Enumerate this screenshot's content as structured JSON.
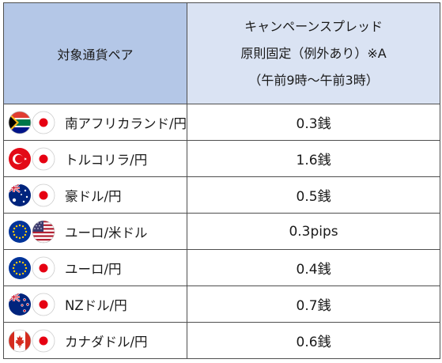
{
  "header": {
    "pair_column": "対象通貨ペア",
    "spread_column_lines": [
      "キャンペーンスプレッド",
      "原則固定（例外あり）※A",
      "（午前9時～午前3時）"
    ]
  },
  "rows": [
    {
      "pair": "南アフリカランド/円",
      "spread": "0.3銭",
      "flag_left": "south-africa-flag-icon",
      "flag_right": "japan-flag-icon"
    },
    {
      "pair": "トルコリラ/円",
      "spread": "1.6銭",
      "flag_left": "turkey-flag-icon",
      "flag_right": "japan-flag-icon"
    },
    {
      "pair": "豪ドル/円",
      "spread": "0.5銭",
      "flag_left": "australia-flag-icon",
      "flag_right": "japan-flag-icon"
    },
    {
      "pair": "ユーロ/米ドル",
      "spread": "0.3pips",
      "flag_left": "eu-flag-icon",
      "flag_right": "usa-flag-icon"
    },
    {
      "pair": "ユーロ/円",
      "spread": "0.4銭",
      "flag_left": "eu-flag-icon",
      "flag_right": "japan-flag-icon"
    },
    {
      "pair": "NZドル/円",
      "spread": "0.7銭",
      "flag_left": "new-zealand-flag-icon",
      "flag_right": "japan-flag-icon"
    },
    {
      "pair": "カナダドル/円",
      "spread": "0.6銭",
      "flag_left": "canada-flag-icon",
      "flag_right": "japan-flag-icon"
    }
  ],
  "colors": {
    "header_left_bg": "#b4c7e7",
    "header_right_bg": "#dae3f3",
    "border": "#4f4f4f"
  }
}
